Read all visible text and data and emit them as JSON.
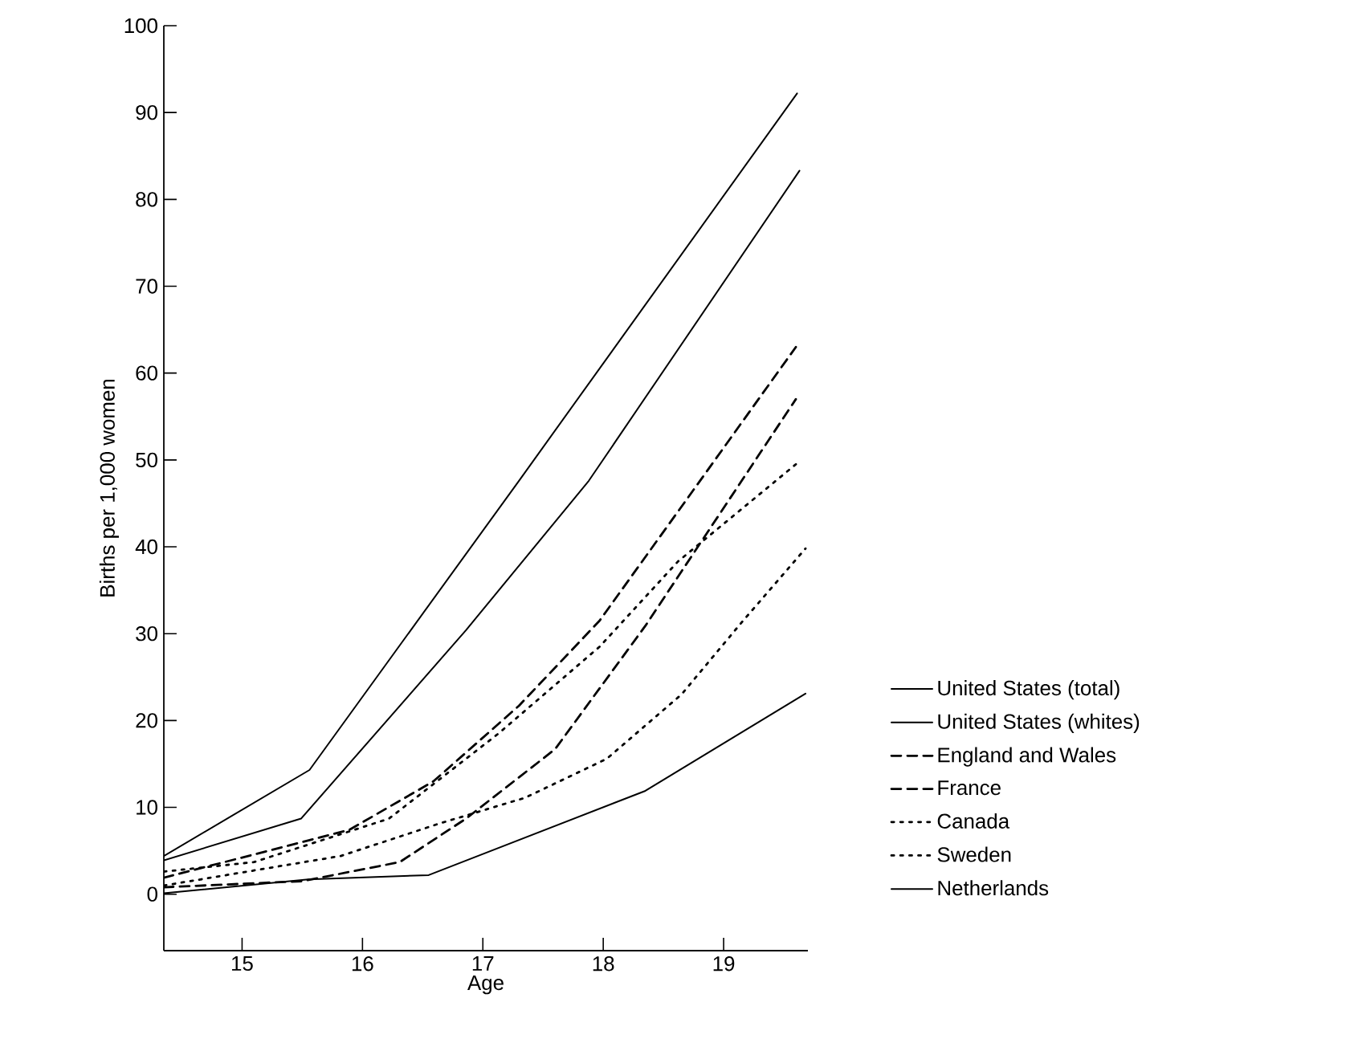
{
  "chart_data": {
    "type": "line",
    "xlabel": "Age",
    "ylabel": "Births per 1,000 women",
    "xlim": [
      14.35,
      19.7
    ],
    "ylim": [
      -6.5,
      100
    ],
    "xticks": [
      15,
      16,
      17,
      18,
      19
    ],
    "yticks": [
      0,
      10,
      20,
      30,
      40,
      50,
      60,
      70,
      80,
      90,
      100
    ],
    "grid": false,
    "legend": "right",
    "marker": "none",
    "series": [
      {
        "name": "United States (total)",
        "color": "#000000",
        "line_style": "solid",
        "x": [
          14.35,
          15.56,
          17.3,
          19.61
        ],
        "values": [
          4.4,
          14.3,
          47.6,
          92.2
        ]
      },
      {
        "name": "United States (whites)",
        "color": "#000000",
        "line_style": "solid",
        "x": [
          14.35,
          15.49,
          16.86,
          17.88,
          19.63
        ],
        "values": [
          3.9,
          8.7,
          30.4,
          47.6,
          83.3
        ]
      },
      {
        "name": "England and Wales",
        "color": "#000000",
        "line_style": "dashed",
        "x": [
          14.35,
          15.89,
          16.59,
          17.3,
          17.97,
          18.68,
          19.6
        ],
        "values": [
          1.9,
          7.4,
          13,
          21.7,
          31.5,
          45.2,
          63
        ]
      },
      {
        "name": "France",
        "color": "#000000",
        "line_style": "dashed",
        "x": [
          14.35,
          15.5,
          16.31,
          16.86,
          17.6,
          18.35,
          19.6
        ],
        "values": [
          0.8,
          1.5,
          3.7,
          8.7,
          16.7,
          30.9,
          57
        ]
      },
      {
        "name": "Canada",
        "color": "#000000",
        "line_style": "dotted",
        "x": [
          14.35,
          15.1,
          16.22,
          17.13,
          17.97,
          18.62,
          19.6
        ],
        "values": [
          2.6,
          3.7,
          8.7,
          18.5,
          28.5,
          38.3,
          49.5
        ]
      },
      {
        "name": "Sweden",
        "color": "#000000",
        "line_style": "dotted",
        "x": [
          14.35,
          15.82,
          16.63,
          17.35,
          18.03,
          18.65,
          19.15,
          19.68
        ],
        "values": [
          1,
          4.4,
          8.1,
          11.1,
          15.6,
          23,
          31.3,
          39.8
        ]
      },
      {
        "name": "Netherlands",
        "color": "#000000",
        "line_style": "solid",
        "x": [
          14.35,
          15.55,
          16.55,
          18.35,
          19.68
        ],
        "values": [
          0.1,
          1.7,
          2.2,
          11.9,
          23.1
        ]
      }
    ]
  }
}
